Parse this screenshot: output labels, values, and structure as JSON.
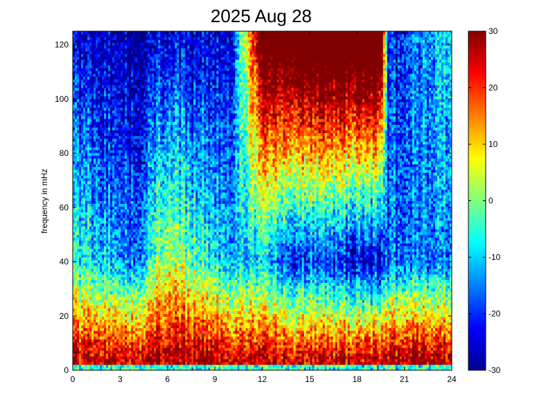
{
  "chart_data": {
    "type": "heatmap",
    "title": "2025 Aug 28",
    "xlabel": "",
    "ylabel": "frequency in mHz",
    "xlim": [
      0,
      24
    ],
    "ylim": [
      0,
      125
    ],
    "x_ticks": [
      0,
      3,
      6,
      9,
      12,
      15,
      18,
      21,
      24
    ],
    "y_ticks": [
      0,
      20,
      40,
      60,
      80,
      100,
      120
    ],
    "colorbar": {
      "colormap": "jet",
      "range": [
        -30,
        30
      ],
      "ticks": [
        30,
        20,
        10,
        0,
        -10,
        -20,
        -30
      ]
    },
    "grid": false,
    "description_of_field": {
      "hours": [
        0,
        2,
        4,
        6,
        8,
        10,
        12,
        14,
        16,
        18,
        19.5,
        20,
        22,
        24
      ],
      "approx_level_at_40mHz": [
        -5,
        -10,
        -15,
        5,
        -5,
        -10,
        -10,
        -20,
        -20,
        -25,
        -25,
        -15,
        -15,
        -15
      ],
      "approx_level_at_5mHz": [
        25,
        25,
        25,
        28,
        28,
        25,
        25,
        25,
        25,
        25,
        25,
        28,
        28,
        25
      ],
      "approx_level_at_100mHz": [
        -20,
        -22,
        -25,
        -15,
        -20,
        -20,
        25,
        28,
        28,
        28,
        28,
        -20,
        -15,
        -10
      ]
    }
  }
}
